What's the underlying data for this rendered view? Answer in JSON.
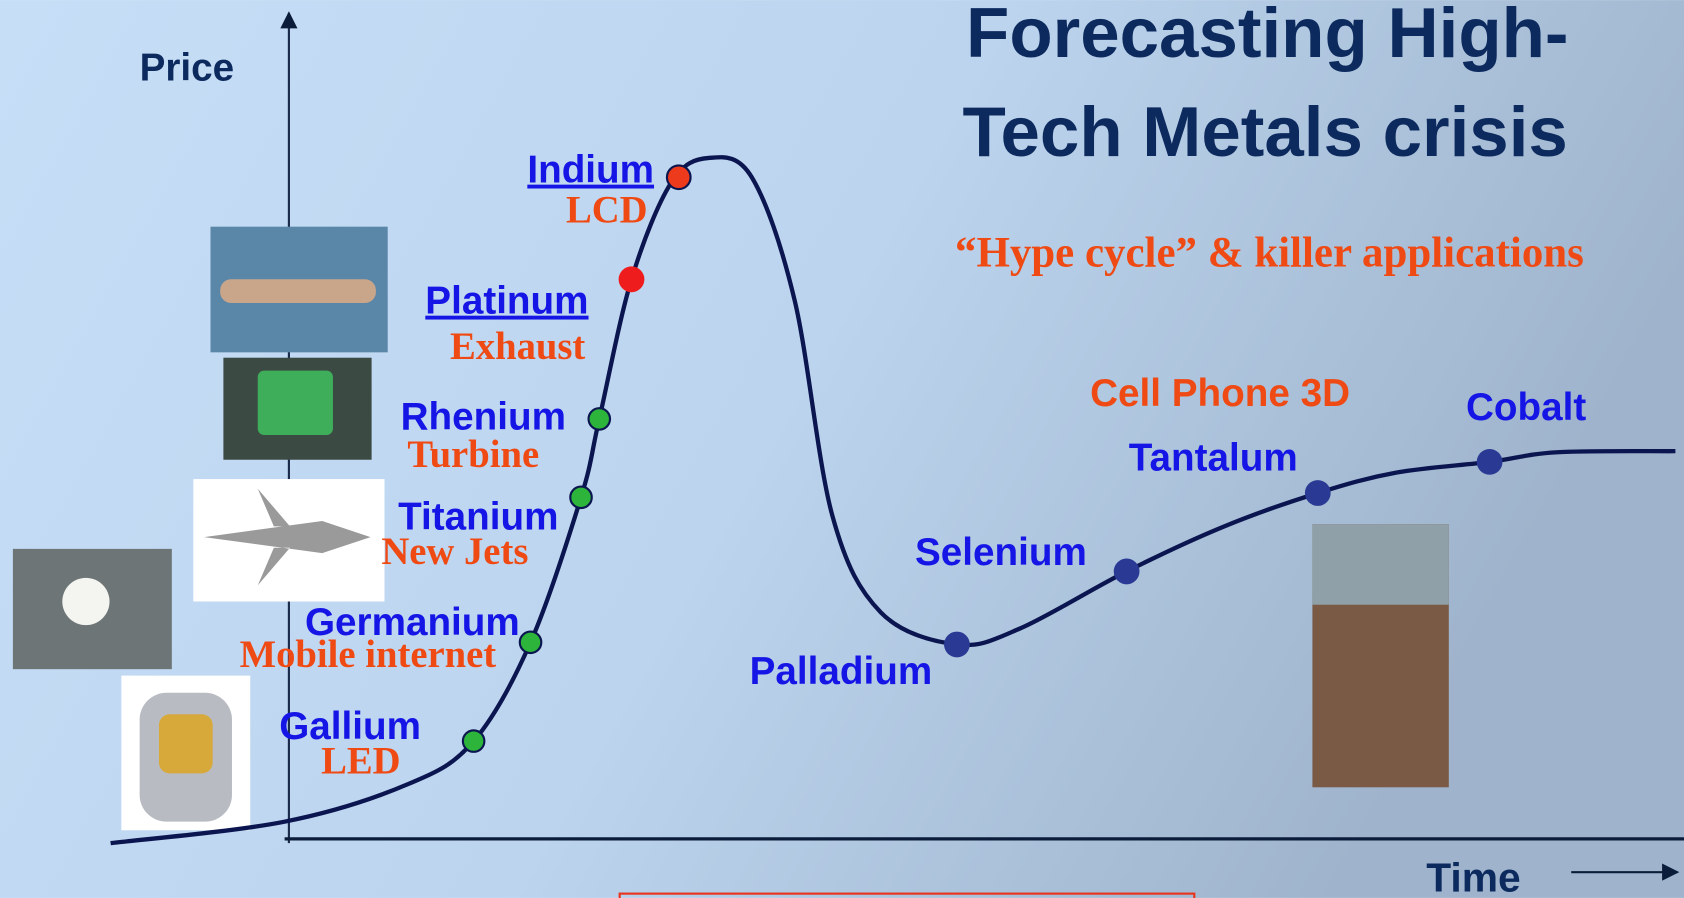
{
  "title": [
    "Forecasting High-",
    "Tech Metals crisis"
  ],
  "subtitle": "“Hype cycle” & killer applications",
  "axes": {
    "y_label": "Price",
    "x_label": "Time"
  },
  "nodes": [
    {
      "label": "Gallium",
      "application": "LED"
    },
    {
      "label": "Germanium",
      "application": "Mobile internet"
    },
    {
      "label": "Titanium",
      "application": "New Jets"
    },
    {
      "label": "Rhenium",
      "application": "Turbine"
    },
    {
      "label": "Platinum",
      "application": "Exhaust"
    },
    {
      "label": "Indium",
      "application": "LCD"
    },
    {
      "label": "Palladium"
    },
    {
      "label": "Selenium"
    },
    {
      "label": "Tantalum",
      "application": "Cell Phone 3D"
    },
    {
      "label": "Cobalt"
    }
  ]
}
